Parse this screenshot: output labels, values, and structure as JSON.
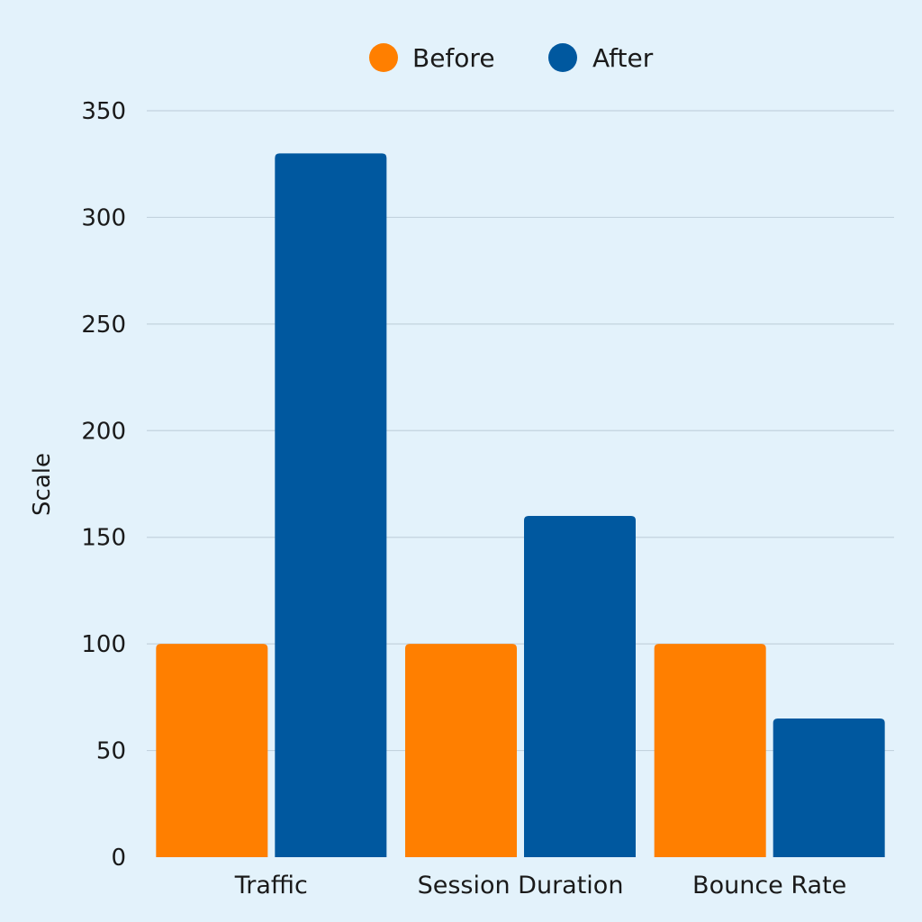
{
  "chart_data": {
    "type": "bar",
    "title": "",
    "xlabel": "",
    "ylabel": "Scale",
    "ylim": [
      0,
      350
    ],
    "yticks": [
      0,
      50,
      100,
      150,
      200,
      250,
      300,
      350
    ],
    "grid": true,
    "legend_position": "top-center",
    "categories": [
      "Traffic",
      "Session Duration",
      "Bounce Rate"
    ],
    "series": [
      {
        "name": "Before",
        "color": "#ff7f00",
        "values": [
          100,
          100,
          100
        ]
      },
      {
        "name": "After",
        "color": "#00589f",
        "values": [
          330,
          160,
          65
        ]
      }
    ]
  }
}
